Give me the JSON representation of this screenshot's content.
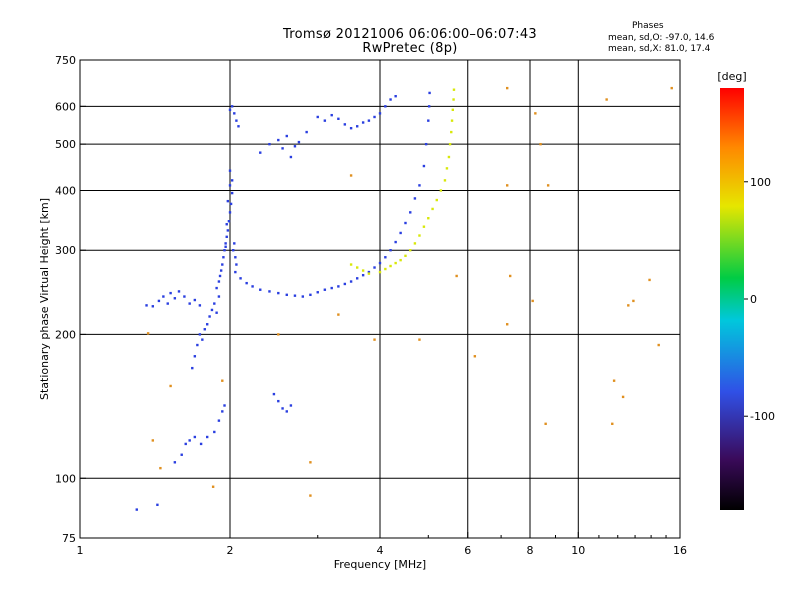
{
  "header": {
    "title_line1": "Tromsø 20121006 06:06:00–06:07:43",
    "title_line2": "RwPretec (8p)"
  },
  "phase_info": {
    "title": "Phases",
    "o_line": "mean, sd,O: -97.0, 14.6",
    "x_line": "mean, sd,X:  81.0, 17.4"
  },
  "colorbar": {
    "unit_label": "[deg]",
    "ticks": [
      {
        "value": 100,
        "label": "100"
      },
      {
        "value": 0,
        "label": "0"
      },
      {
        "value": -100,
        "label": "-100"
      }
    ],
    "range": [
      -180,
      180
    ],
    "colors": [
      "#000000",
      "#3a0a5a",
      "#3050e6",
      "#00c8dc",
      "#00cc44",
      "#e6e600",
      "#ff8800",
      "#ff0000"
    ]
  },
  "chart_data": {
    "type": "scatter",
    "title": "Tromsø 20121006 06:06:00–06:07:43",
    "subtitle": "RwPretec (8p)",
    "xlabel": "Frequency [MHz]",
    "ylabel": "Stationary phase Virtual Height [km]",
    "xscale": "log",
    "yscale": "log",
    "xlim": [
      1,
      16
    ],
    "ylim": [
      75,
      750
    ],
    "xticks": [
      1,
      2,
      4,
      6,
      8,
      10,
      16
    ],
    "xtick_labels": [
      "1",
      "2",
      "4",
      "6",
      "8",
      "10",
      "16"
    ],
    "yticks": [
      75,
      100,
      200,
      300,
      400,
      500,
      600,
      750
    ],
    "ytick_labels": [
      "75",
      "100",
      "200",
      "300",
      "400",
      "500",
      "600",
      "750"
    ],
    "grid": true,
    "color_by": "phase [deg]",
    "series": [
      {
        "mode": "O",
        "color": "#2a3fe0",
        "points": [
          [
            1.36,
            230
          ],
          [
            1.4,
            229
          ],
          [
            1.44,
            235
          ],
          [
            1.47,
            240
          ],
          [
            1.5,
            232
          ],
          [
            1.52,
            244
          ],
          [
            1.55,
            238
          ],
          [
            1.58,
            246
          ],
          [
            1.62,
            240
          ],
          [
            1.66,
            232
          ],
          [
            1.7,
            236
          ],
          [
            1.74,
            230
          ],
          [
            1.55,
            108
          ],
          [
            1.6,
            112
          ],
          [
            1.63,
            118
          ],
          [
            1.66,
            120
          ],
          [
            1.7,
            122
          ],
          [
            1.75,
            118
          ],
          [
            1.8,
            122
          ],
          [
            1.86,
            125
          ],
          [
            1.9,
            132
          ],
          [
            1.93,
            138
          ],
          [
            1.95,
            142
          ],
          [
            1.68,
            170
          ],
          [
            1.7,
            180
          ],
          [
            1.72,
            190
          ],
          [
            1.74,
            200
          ],
          [
            1.76,
            195
          ],
          [
            1.78,
            205
          ],
          [
            1.8,
            210
          ],
          [
            1.82,
            218
          ],
          [
            1.84,
            225
          ],
          [
            1.86,
            232
          ],
          [
            1.88,
            222
          ],
          [
            1.9,
            240
          ],
          [
            1.88,
            250
          ],
          [
            1.9,
            258
          ],
          [
            1.91,
            265
          ],
          [
            1.92,
            272
          ],
          [
            1.93,
            280
          ],
          [
            1.94,
            290
          ],
          [
            1.95,
            300
          ],
          [
            1.96,
            310
          ],
          [
            1.97,
            320
          ],
          [
            1.98,
            330
          ],
          [
            1.99,
            345
          ],
          [
            2.0,
            360
          ],
          [
            2.01,
            375
          ],
          [
            2.02,
            395
          ],
          [
            2.0,
            410
          ],
          [
            1.98,
            380
          ],
          [
            1.97,
            340
          ],
          [
            1.96,
            305
          ],
          [
            2.03,
            300
          ],
          [
            2.05,
            290
          ],
          [
            2.06,
            280
          ],
          [
            2.04,
            310
          ],
          [
            2.02,
            420
          ],
          [
            2.0,
            440
          ],
          [
            2.05,
            270
          ],
          [
            2.1,
            262
          ],
          [
            2.16,
            256
          ],
          [
            2.22,
            252
          ],
          [
            2.3,
            248
          ],
          [
            2.4,
            246
          ],
          [
            2.5,
            244
          ],
          [
            2.6,
            242
          ],
          [
            2.7,
            241
          ],
          [
            2.8,
            240
          ],
          [
            2.9,
            242
          ],
          [
            3.0,
            245
          ],
          [
            3.1,
            248
          ],
          [
            3.2,
            250
          ],
          [
            3.3,
            252
          ],
          [
            3.4,
            255
          ],
          [
            3.5,
            258
          ],
          [
            3.6,
            262
          ],
          [
            3.7,
            266
          ],
          [
            3.8,
            270
          ],
          [
            3.9,
            276
          ],
          [
            4.0,
            282
          ],
          [
            4.1,
            290
          ],
          [
            4.2,
            300
          ],
          [
            4.3,
            312
          ],
          [
            4.4,
            326
          ],
          [
            4.5,
            342
          ],
          [
            4.6,
            360
          ],
          [
            4.7,
            385
          ],
          [
            4.8,
            410
          ],
          [
            4.9,
            450
          ],
          [
            4.95,
            500
          ],
          [
            5.0,
            560
          ],
          [
            5.02,
            600
          ],
          [
            5.03,
            640
          ],
          [
            2.0,
            590
          ],
          [
            2.02,
            600
          ],
          [
            2.04,
            580
          ],
          [
            2.06,
            560
          ],
          [
            2.08,
            545
          ],
          [
            2.3,
            480
          ],
          [
            2.4,
            500
          ],
          [
            2.5,
            510
          ],
          [
            2.55,
            490
          ],
          [
            2.6,
            520
          ],
          [
            2.65,
            470
          ],
          [
            2.7,
            495
          ],
          [
            2.75,
            505
          ],
          [
            2.85,
            530
          ],
          [
            3.0,
            570
          ],
          [
            3.1,
            560
          ],
          [
            3.2,
            575
          ],
          [
            3.3,
            565
          ],
          [
            3.4,
            550
          ],
          [
            3.5,
            540
          ],
          [
            3.6,
            545
          ],
          [
            3.7,
            555
          ],
          [
            3.8,
            560
          ],
          [
            3.9,
            570
          ],
          [
            4.0,
            580
          ],
          [
            4.1,
            600
          ],
          [
            4.2,
            620
          ],
          [
            4.3,
            630
          ],
          [
            2.45,
            150
          ],
          [
            2.5,
            145
          ],
          [
            2.55,
            140
          ],
          [
            2.6,
            138
          ],
          [
            2.65,
            142
          ],
          [
            1.43,
            88
          ],
          [
            1.3,
            86
          ]
        ]
      },
      {
        "mode": "X",
        "color": "#d8e80a",
        "points": [
          [
            4.0,
            270
          ],
          [
            4.1,
            274
          ],
          [
            4.2,
            278
          ],
          [
            4.3,
            282
          ],
          [
            4.4,
            286
          ],
          [
            4.5,
            292
          ],
          [
            4.6,
            300
          ],
          [
            4.7,
            310
          ],
          [
            4.8,
            322
          ],
          [
            4.9,
            336
          ],
          [
            5.0,
            350
          ],
          [
            5.1,
            366
          ],
          [
            5.2,
            382
          ],
          [
            5.3,
            400
          ],
          [
            5.4,
            420
          ],
          [
            5.45,
            445
          ],
          [
            5.5,
            470
          ],
          [
            5.53,
            500
          ],
          [
            5.56,
            530
          ],
          [
            5.58,
            560
          ],
          [
            5.6,
            590
          ],
          [
            5.62,
            620
          ],
          [
            5.63,
            650
          ],
          [
            3.5,
            280
          ],
          [
            3.6,
            276
          ],
          [
            3.7,
            272
          ],
          [
            3.8,
            268
          ]
        ]
      },
      {
        "mode": "scatter/noise",
        "color": "#e09020",
        "points": [
          [
            7.2,
            655
          ],
          [
            8.2,
            580
          ],
          [
            8.4,
            500
          ],
          [
            8.7,
            410
          ],
          [
            7.2,
            410
          ],
          [
            11.4,
            620
          ],
          [
            7.3,
            265
          ],
          [
            8.1,
            235
          ],
          [
            7.2,
            210
          ],
          [
            5.7,
            265
          ],
          [
            3.3,
            220
          ],
          [
            2.5,
            200
          ],
          [
            11.8,
            160
          ],
          [
            12.3,
            148
          ],
          [
            14.5,
            190
          ],
          [
            12.6,
            230
          ],
          [
            12.9,
            235
          ],
          [
            1.85,
            96
          ],
          [
            2.9,
            92
          ],
          [
            2.9,
            108
          ],
          [
            1.52,
            156
          ],
          [
            1.93,
            160
          ],
          [
            1.4,
            120
          ],
          [
            1.45,
            105
          ],
          [
            1.37,
            201
          ],
          [
            3.9,
            195
          ],
          [
            3.5,
            430
          ],
          [
            4.8,
            195
          ],
          [
            6.2,
            180
          ],
          [
            8.6,
            130
          ],
          [
            11.7,
            130
          ],
          [
            13.9,
            260
          ],
          [
            15.4,
            655
          ]
        ]
      }
    ]
  }
}
